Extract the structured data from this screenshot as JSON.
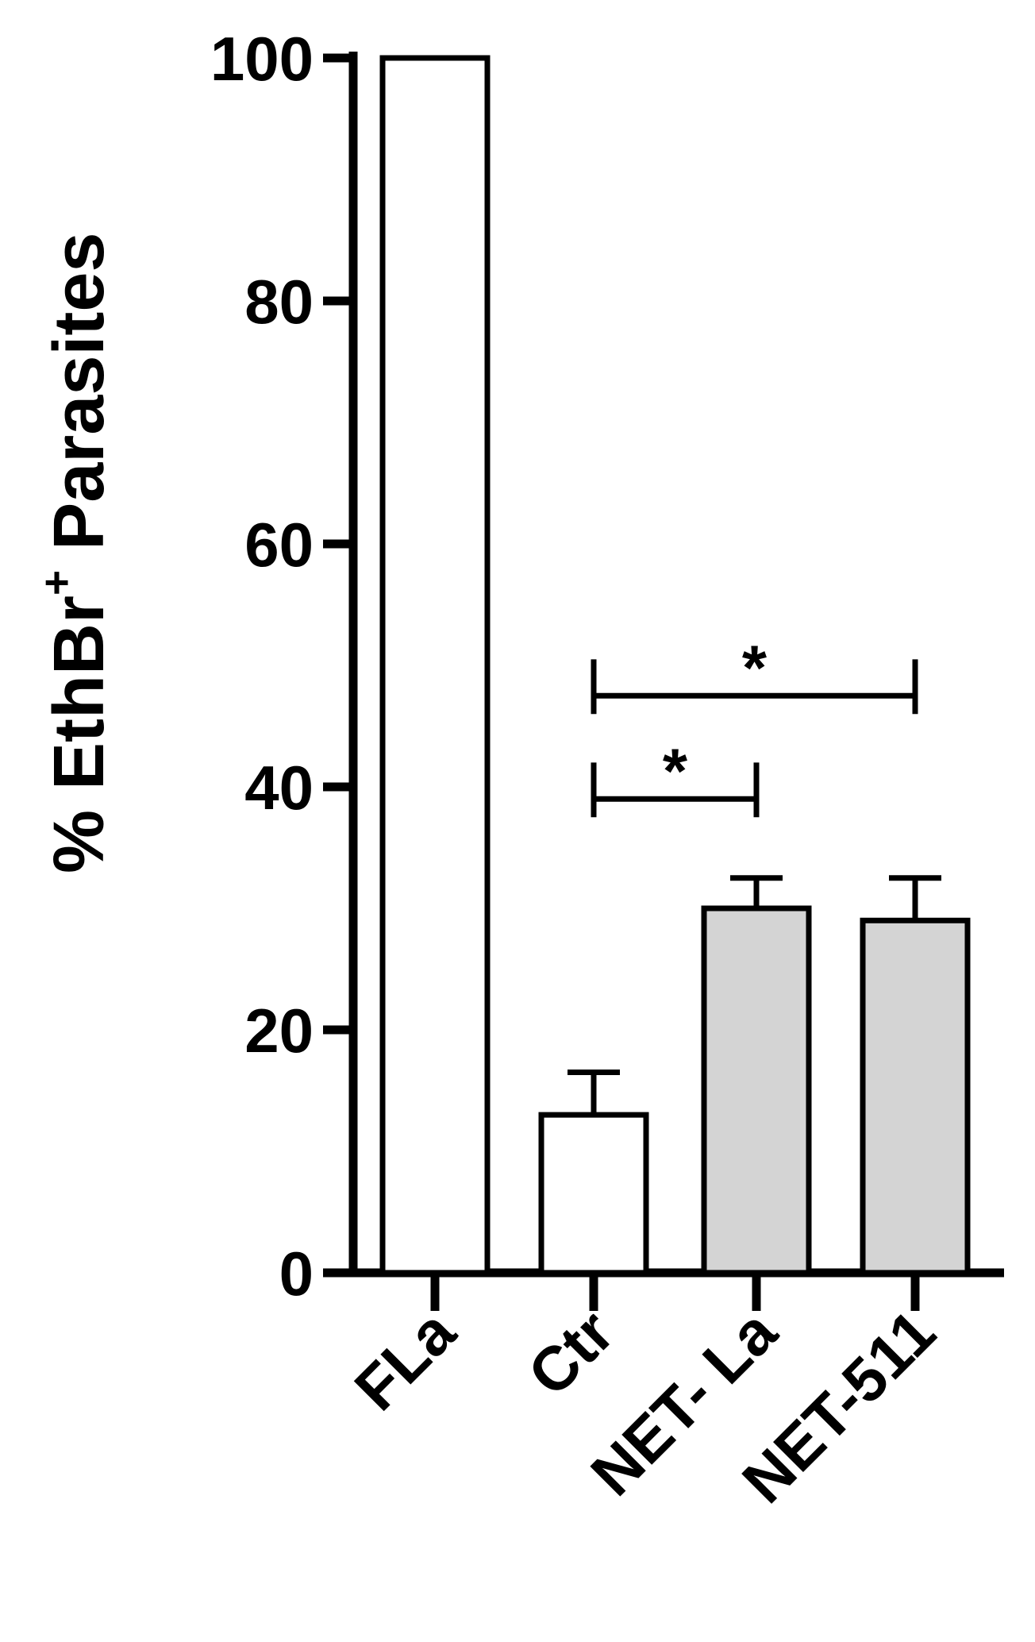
{
  "chart_data": {
    "type": "bar",
    "ylabel_main": "% EthBr",
    "ylabel_sup": "+",
    "ylabel_tail": " Parasites",
    "ylim": [
      0,
      100
    ],
    "yticks": [
      0,
      20,
      40,
      60,
      80,
      100
    ],
    "categories": [
      "FLa",
      "Ctr",
      "NET- La",
      "NET-511"
    ],
    "values": [
      100,
      13,
      30,
      29
    ],
    "errors": [
      0,
      3.5,
      2.5,
      3.5
    ],
    "bar_colors": [
      "#ffffff",
      "#ffffff",
      "#d4d4d4",
      "#d4d4d4"
    ],
    "significance": [
      {
        "from": 1,
        "to": 2,
        "y": 39,
        "cap_low": 37.5,
        "cap_high": 42,
        "label": "*"
      },
      {
        "from": 1,
        "to": 3,
        "y": 47.5,
        "cap_low": 46,
        "cap_high": 50.5,
        "label": "*"
      }
    ]
  }
}
